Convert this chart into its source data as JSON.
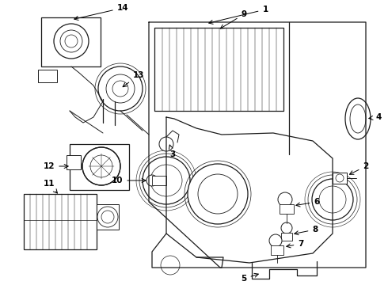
{
  "bg_color": "#ffffff",
  "line_color": "#1a1a1a",
  "label_color": "#000000",
  "lw": 0.9
}
